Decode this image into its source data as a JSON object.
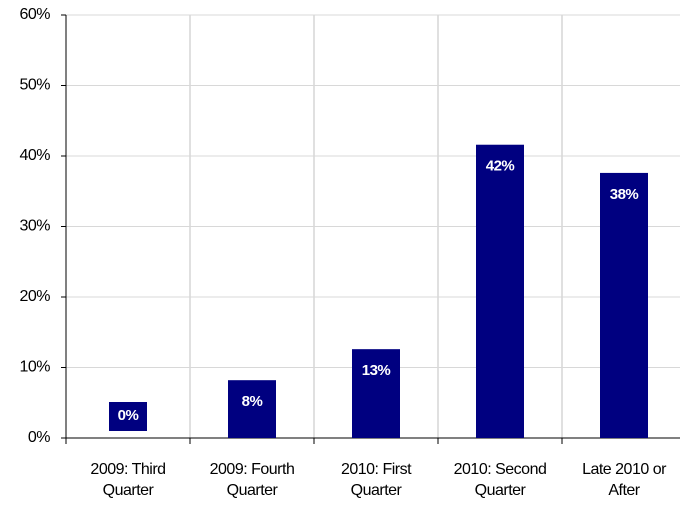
{
  "chart_data": {
    "type": "bar",
    "categories": [
      [
        "2009: Third",
        "Quarter"
      ],
      [
        "2009: Fourth",
        "Quarter"
      ],
      [
        "2010: First",
        "Quarter"
      ],
      [
        "2010: Second",
        "Quarter"
      ],
      [
        "Late 2010 or",
        "After"
      ]
    ],
    "values": [
      0,
      8.2,
      12.6,
      41.6,
      37.6
    ],
    "value_labels": [
      "0%",
      "8%",
      "13%",
      "42%",
      "38%"
    ],
    "color": "#000080",
    "ylim": [
      0,
      60
    ],
    "yticks": [
      {
        "value": 0,
        "label": "0%"
      },
      {
        "value": 10,
        "label": "10%"
      },
      {
        "value": 20,
        "label": "20%"
      },
      {
        "value": 30,
        "label": "30%"
      },
      {
        "value": 40,
        "label": "40%"
      },
      {
        "value": 50,
        "label": "50%"
      },
      {
        "value": 60,
        "label": "60%"
      }
    ],
    "grid": true
  }
}
